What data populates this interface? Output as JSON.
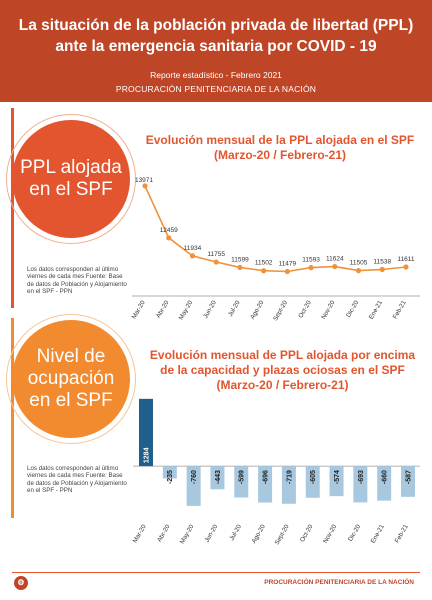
{
  "header": {
    "title_line1": "La situación de la población privada de libertad (PPL)",
    "title_line2": "ante la emergencia sanitaria por COVID - 19",
    "report": "Reporte estadístico - Febrero 2021",
    "org": "PROCURACIÓN PENITENCIARIA DE LA NACIÓN"
  },
  "section1": {
    "label": "PPL alojada\nen el SPF",
    "note": "Los datos corresponden al último viernes de cada mes Fuente: Base de datos de Población y Alojamiento en el SPF - PPN"
  },
  "section2": {
    "label": "Nivel de\nocupación\nen el SPF",
    "note": "Los datos corresponden al último viernes de cada mes Fuente: Base de datos de Población y Alojamiento en el SPF - PPN"
  },
  "footer": {
    "org": "PROCURACIÓN PENITENCIARIA DE LA NACIÓN",
    "logo_icon": "ppn-logo-icon"
  },
  "colors": {
    "header": "#bf4527",
    "accent": "#e2552e",
    "line": "#f0923a",
    "bar_dark": "#1f5f8b",
    "bar_light": "#a7c8de"
  },
  "chart_data": [
    {
      "type": "line",
      "title_line1": "Evolución mensual de la PPL alojada en el SPF",
      "title_line2": "(Marzo-20 / Febrero-21)",
      "categories": [
        "Mar-20",
        "Abr-20",
        "May-20",
        "Jun-20",
        "Jul-20",
        "Ago-20",
        "Sept-20",
        "Oct-20",
        "Nov-20",
        "Dic-20",
        "Ene-21",
        "Feb-21"
      ],
      "values": [
        13971,
        12459,
        11934,
        11755,
        11599,
        11502,
        11479,
        11593,
        11624,
        11505,
        11538,
        11611
      ],
      "ylim": [
        11000,
        14200
      ]
    },
    {
      "type": "bar",
      "title_line1": "Evolución mensual de PPL alojada por encima",
      "title_line2": "de la capacidad y plazas ociosas en el SPF",
      "title_line3": "(Marzo-20 / Febrero-21)",
      "categories": [
        "Mar-20",
        "Abr-20",
        "May-20",
        "Jun-20",
        "Jul-20",
        "Ago-20",
        "Sept-20",
        "Oct-20",
        "Nov-20",
        "Dic-20",
        "Ene-21",
        "Feb-21"
      ],
      "values": [
        1284,
        -235,
        -760,
        -443,
        -599,
        -696,
        -719,
        -605,
        -574,
        -693,
        -660,
        -587
      ],
      "ylim": [
        -800,
        1300
      ]
    }
  ]
}
